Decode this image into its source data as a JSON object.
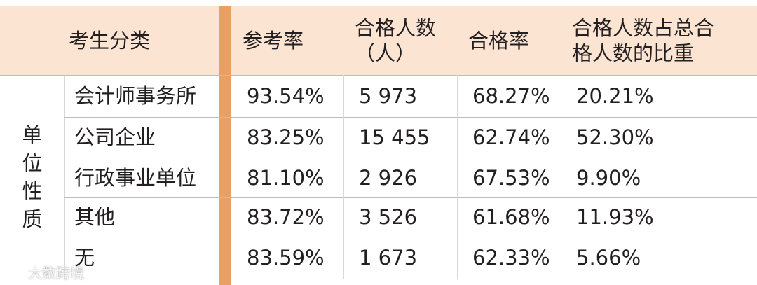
{
  "table": {
    "header": {
      "category": "考生分类",
      "columns": [
        [
          "参考率"
        ],
        [
          "合格人数",
          "（人）"
        ],
        [
          "合格率"
        ],
        [
          "合格人数占总合",
          "格人数的比重"
        ]
      ]
    },
    "group": "单位性质",
    "rows": [
      [
        "会计师事务所",
        "93.54%",
        "5 973",
        "68.27%",
        "20.21%"
      ],
      [
        "公司企业",
        "83.25%",
        "15 455",
        "62.74%",
        "52.30%"
      ],
      [
        "行政事业单位",
        "81.10%",
        "2 926",
        "67.53%",
        "9.90%"
      ],
      [
        "其他",
        "83.72%",
        "3 526",
        "61.68%",
        "11.93%"
      ],
      [
        "无",
        "83.59%",
        "1 673",
        "62.33%",
        "5.66%"
      ]
    ]
  },
  "watermark": "大数跨境"
}
